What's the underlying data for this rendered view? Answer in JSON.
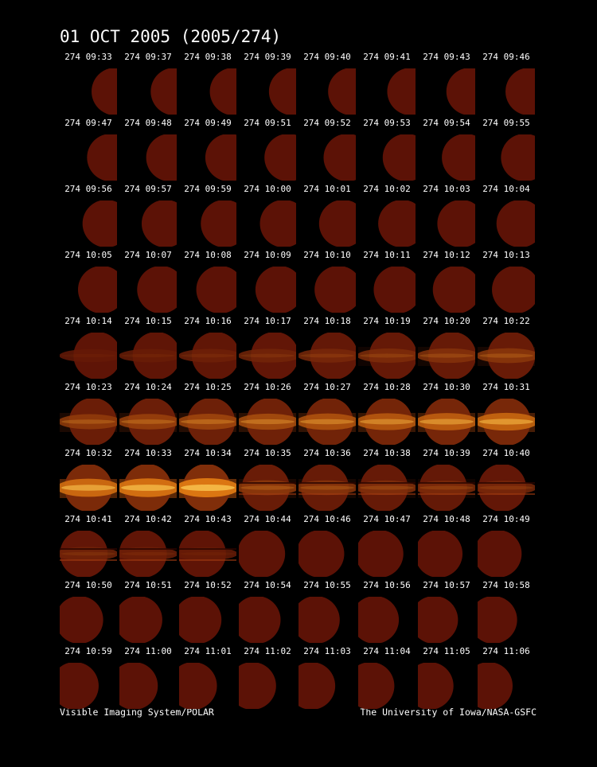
{
  "header": {
    "title": "01 OCT 2005  (2005/274)"
  },
  "frames": [
    "274 09:33",
    "274 09:37",
    "274 09:38",
    "274 09:39",
    "274 09:40",
    "274 09:41",
    "274 09:43",
    "274 09:46",
    "274 09:47",
    "274 09:48",
    "274 09:49",
    "274 09:51",
    "274 09:52",
    "274 09:53",
    "274 09:54",
    "274 09:55",
    "274 09:56",
    "274 09:57",
    "274 09:59",
    "274 10:00",
    "274 10:01",
    "274 10:02",
    "274 10:03",
    "274 10:04",
    "274 10:05",
    "274 10:07",
    "274 10:08",
    "274 10:09",
    "274 10:10",
    "274 10:11",
    "274 10:12",
    "274 10:13",
    "274 10:14",
    "274 10:15",
    "274 10:16",
    "274 10:17",
    "274 10:18",
    "274 10:19",
    "274 10:20",
    "274 10:22",
    "274 10:23",
    "274 10:24",
    "274 10:25",
    "274 10:26",
    "274 10:27",
    "274 10:28",
    "274 10:30",
    "274 10:31",
    "274 10:32",
    "274 10:33",
    "274 10:34",
    "274 10:35",
    "274 10:36",
    "274 10:38",
    "274 10:39",
    "274 10:40",
    "274 10:41",
    "274 10:42",
    "274 10:43",
    "274 10:44",
    "274 10:46",
    "274 10:47",
    "274 10:48",
    "274 10:49",
    "274 10:50",
    "274 10:51",
    "274 10:52",
    "274 10:54",
    "274 10:55",
    "274 10:56",
    "274 10:57",
    "274 10:58",
    "274 10:59",
    "274 11:00",
    "274 11:01",
    "274 11:02",
    "274 11:03",
    "274 11:04",
    "274 11:05",
    "274 11:06"
  ],
  "footer": {
    "left": "Visible Imaging System/POLAR",
    "right": "The University of Iowa/NASA-GSFC"
  }
}
